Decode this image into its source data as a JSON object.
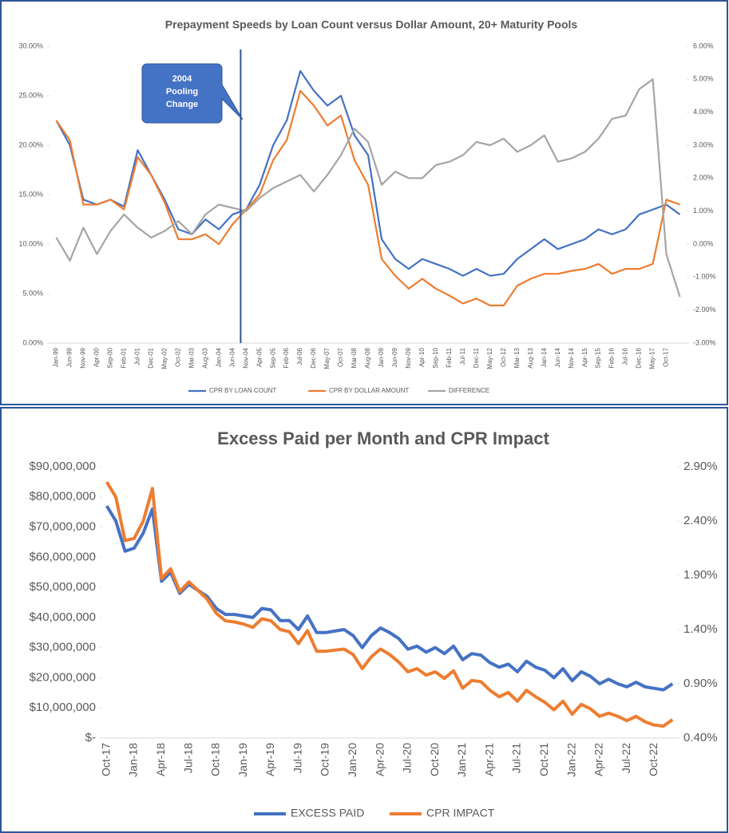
{
  "chart_data": [
    {
      "type": "line",
      "title": "Prepayment Speeds by Loan Count versus Dollar Amount, 20+ Maturity Pools",
      "annotation": [
        "2004",
        "Pooling",
        "Change"
      ],
      "categories": [
        "Jan-99",
        "Jun-99",
        "Nov-99",
        "Apr-00",
        "Sep-00",
        "Feb-01",
        "Jul-01",
        "Dec-01",
        "May-02",
        "Oct-02",
        "Mar-03",
        "Aug-03",
        "Jan-04",
        "Jun-04",
        "Nov-04",
        "Apr-05",
        "Sep-05",
        "Feb-06",
        "Jul-06",
        "Dec-06",
        "May-07",
        "Oct-07",
        "Mar-08",
        "Aug-08",
        "Jan-09",
        "Jun-09",
        "Nov-09",
        "Apr-10",
        "Sep-10",
        "Feb-11",
        "Jul-11",
        "Dec-11",
        "May-12",
        "Oct-12",
        "Mar-13",
        "Aug-13",
        "Jan-14",
        "Jun-14",
        "Nov-14",
        "Apr-15",
        "Sep-15",
        "Feb-16",
        "Jul-16",
        "Dec-16",
        "May-17",
        "Oct-17",
        null
      ],
      "series": [
        {
          "name": "CPR BY LOAN COUNT",
          "color": "#4472c4",
          "values": [
            22.5,
            20,
            14.5,
            14,
            14.5,
            13.8,
            19.5,
            17,
            14.5,
            11.5,
            11,
            12.5,
            11.5,
            13,
            13.5,
            16,
            20,
            22.5,
            27.5,
            25.5,
            24,
            25,
            21,
            19,
            10.5,
            8.5,
            7.5,
            8.5,
            8,
            7.5,
            6.8,
            7.5,
            6.8,
            7,
            8.5,
            9.5,
            10.5,
            9.5,
            10,
            10.5,
            11.5,
            11,
            11.5,
            13,
            13.5,
            14,
            13
          ]
        },
        {
          "name": "CPR BY DOLLAR AMOUNT",
          "color": "#ed7d31",
          "values": [
            22.5,
            20.5,
            14,
            14,
            14.5,
            13.5,
            18.8,
            17,
            14.2,
            10.5,
            10.5,
            11,
            10,
            12,
            13.5,
            15,
            18.5,
            20.5,
            25.5,
            24,
            22,
            23,
            18.5,
            16,
            8.5,
            6.8,
            5.5,
            6.5,
            5.5,
            4.8,
            4,
            4.5,
            3.8,
            3.8,
            5.8,
            6.5,
            7,
            7,
            7.3,
            7.5,
            8,
            7,
            7.5,
            7.5,
            8,
            14.5,
            14
          ]
        },
        {
          "name": "DIFFERENCE",
          "color": "#a5a5a5",
          "axis": "y2",
          "values": [
            0.2,
            -0.5,
            0.5,
            -0.3,
            0.4,
            0.9,
            0.5,
            0.2,
            0.4,
            0.7,
            0.3,
            0.9,
            1.2,
            1.1,
            1.0,
            1.4,
            1.7,
            1.9,
            2.1,
            1.6,
            2.1,
            2.7,
            3.5,
            3.1,
            1.8,
            2.2,
            2.0,
            2.0,
            2.4,
            2.5,
            2.7,
            3.1,
            3.0,
            3.2,
            2.8,
            3.0,
            3.3,
            2.5,
            2.6,
            2.8,
            3.2,
            3.8,
            3.9,
            4.7,
            5.0,
            -0.3,
            -1.6
          ]
        }
      ],
      "ylim": [
        0,
        30
      ],
      "yticks": [
        {
          "value": 0,
          "label": "0.00%"
        },
        {
          "value": 5,
          "label": "5.00%"
        },
        {
          "value": 10,
          "label": "10.00%"
        },
        {
          "value": 15,
          "label": "15.00%"
        },
        {
          "value": 20,
          "label": "20.00%"
        },
        {
          "value": 25,
          "label": "25.00%"
        },
        {
          "value": 30,
          "label": "30.00%"
        }
      ],
      "y2lim": [
        -3,
        6
      ],
      "y2ticks": [
        {
          "value": -3,
          "label": "-3.00%"
        },
        {
          "value": -2,
          "label": "-2.00%"
        },
        {
          "value": -1,
          "label": "-1.00%"
        },
        {
          "value": 0,
          "label": "0.00%"
        },
        {
          "value": 1,
          "label": "1.00%"
        },
        {
          "value": 2,
          "label": "2.00%"
        },
        {
          "value": 3,
          "label": "3.00%"
        },
        {
          "value": 4,
          "label": "4.00%"
        },
        {
          "value": 5,
          "label": "5.00%"
        },
        {
          "value": 6,
          "label": "6.00%"
        }
      ],
      "grid": false,
      "legend": "bottom"
    },
    {
      "type": "line",
      "title": "Excess Paid per Month and CPR Impact",
      "categories": [
        "Oct-17",
        null,
        null,
        "Jan-18",
        null,
        null,
        "Apr-18",
        null,
        null,
        "Jul-18",
        null,
        null,
        "Oct-18",
        null,
        null,
        "Jan-19",
        null,
        null,
        "Apr-19",
        null,
        null,
        "Jul-19",
        null,
        null,
        "Oct-19",
        null,
        null,
        "Jan-20",
        null,
        null,
        "Apr-20",
        null,
        null,
        "Jul-20",
        null,
        null,
        "Oct-20",
        null,
        null,
        "Jan-21",
        null,
        null,
        "Apr-21",
        null,
        null,
        "Jul-21",
        null,
        null,
        "Oct-21",
        null,
        null,
        "Jan-22",
        null,
        null,
        "Apr-22",
        null,
        null,
        "Jul-22",
        null,
        null,
        "Oct-22",
        null,
        null
      ],
      "series": [
        {
          "name": "EXCESS PAID",
          "color": "#4472c4",
          "values": [
            77000000,
            72000000,
            62000000,
            63000000,
            68000000,
            76000000,
            52000000,
            55000000,
            48000000,
            51000000,
            49000000,
            47000000,
            43000000,
            41000000,
            41000000,
            40500000,
            40000000,
            43000000,
            42500000,
            39000000,
            39000000,
            36000000,
            40500000,
            35000000,
            35000000,
            35500000,
            36000000,
            34000000,
            30000000,
            34000000,
            36500000,
            35000000,
            33000000,
            29500000,
            30500000,
            28500000,
            30000000,
            28000000,
            30500000,
            26000000,
            28000000,
            27500000,
            25000000,
            23500000,
            24500000,
            22000000,
            25500000,
            23500000,
            22500000,
            20000000,
            23000000,
            19000000,
            22000000,
            20500000,
            18000000,
            19500000,
            18000000,
            17000000,
            18500000,
            17000000,
            16500000,
            16000000,
            18000000
          ]
        },
        {
          "name": "CPR IMPACT",
          "color": "#ed7d31",
          "axis": "y2",
          "values": [
            2.76,
            2.62,
            2.22,
            2.24,
            2.4,
            2.7,
            1.87,
            1.96,
            1.75,
            1.84,
            1.76,
            1.68,
            1.55,
            1.48,
            1.47,
            1.45,
            1.42,
            1.5,
            1.48,
            1.4,
            1.38,
            1.27,
            1.39,
            1.2,
            1.2,
            1.21,
            1.22,
            1.17,
            1.04,
            1.15,
            1.22,
            1.17,
            1.1,
            1.01,
            1.04,
            0.98,
            1.01,
            0.95,
            1.02,
            0.86,
            0.93,
            0.92,
            0.84,
            0.78,
            0.82,
            0.74,
            0.84,
            0.78,
            0.73,
            0.66,
            0.74,
            0.62,
            0.71,
            0.67,
            0.6,
            0.63,
            0.6,
            0.56,
            0.6,
            0.55,
            0.52,
            0.51,
            0.57
          ]
        }
      ],
      "ylim": [
        0,
        90000000
      ],
      "yticks": [
        {
          "value": 0,
          "label": "$-"
        },
        {
          "value": 10000000,
          "label": "$10,000,000"
        },
        {
          "value": 20000000,
          "label": "$20,000,000"
        },
        {
          "value": 30000000,
          "label": "$30,000,000"
        },
        {
          "value": 40000000,
          "label": "$40,000,000"
        },
        {
          "value": 50000000,
          "label": "$50,000,000"
        },
        {
          "value": 60000000,
          "label": "$60,000,000"
        },
        {
          "value": 70000000,
          "label": "$70,000,000"
        },
        {
          "value": 80000000,
          "label": "$80,000,000"
        },
        {
          "value": 90000000,
          "label": "$90,000,000"
        }
      ],
      "y2lim": [
        0.4,
        2.9
      ],
      "y2ticks": [
        {
          "value": 0.4,
          "label": "0.40%"
        },
        {
          "value": 0.9,
          "label": "0.90%"
        },
        {
          "value": 1.4,
          "label": "1.40%"
        },
        {
          "value": 1.9,
          "label": "1.90%"
        },
        {
          "value": 2.4,
          "label": "2.40%"
        },
        {
          "value": 2.9,
          "label": "2.90%"
        }
      ],
      "grid": false,
      "legend": "bottom"
    }
  ]
}
